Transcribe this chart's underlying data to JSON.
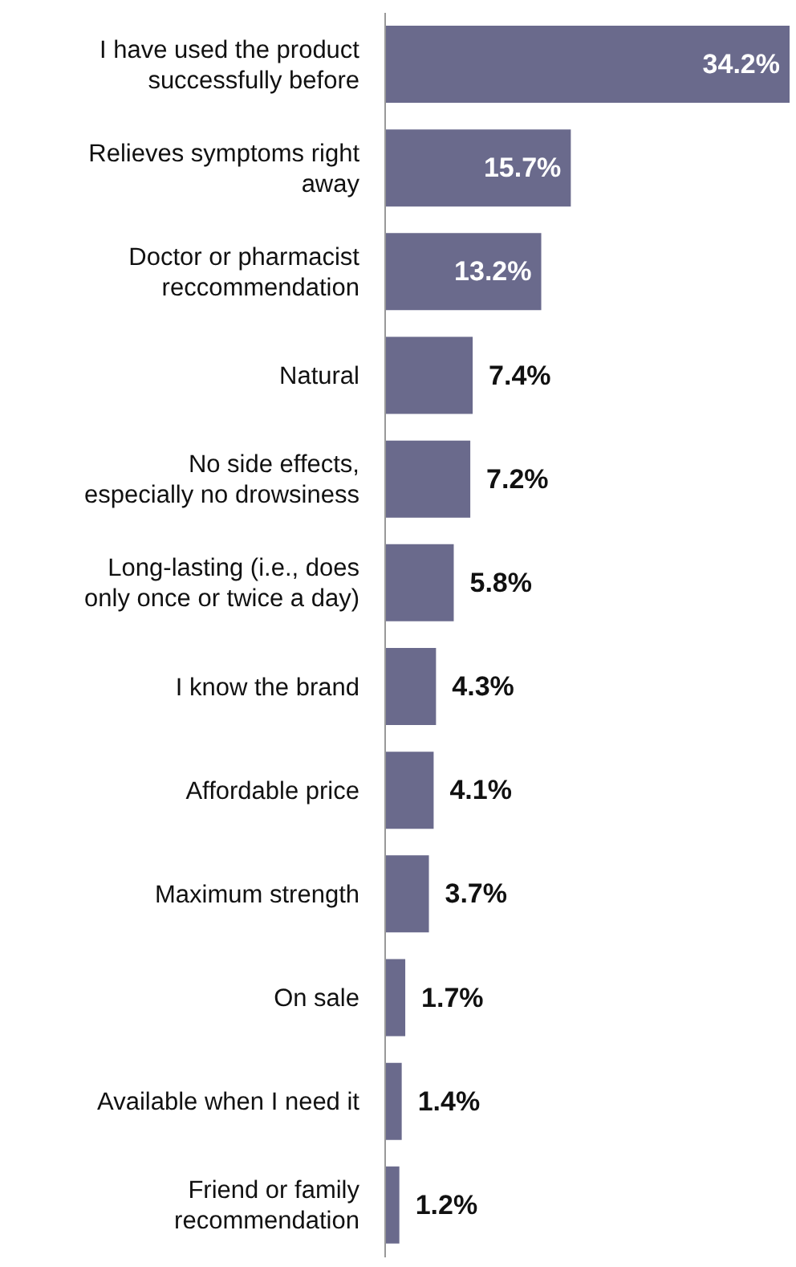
{
  "chart_data": {
    "type": "bar",
    "orientation": "horizontal",
    "categories": [
      "I have used the product successfully before",
      "Relieves symptoms right away",
      "Doctor or pharmacist reccommendation",
      "Natural",
      "No side effects, especially no drowsiness",
      "Long-lasting (i.e., does only once or twice a day)",
      "I know the brand",
      "Affordable price",
      "Maximum strength",
      "On sale",
      "Available when I need it",
      "Friend or family recommendation"
    ],
    "values": [
      34.2,
      15.7,
      13.2,
      7.4,
      7.2,
      5.8,
      4.3,
      4.1,
      3.7,
      1.7,
      1.4,
      1.2
    ],
    "value_labels": [
      "34.2%",
      "15.7%",
      "13.2%",
      "7.4%",
      "7.2%",
      "5.8%",
      "4.3%",
      "4.1%",
      "3.7%",
      "1.7%",
      "1.4%",
      "1.2%"
    ],
    "color": "#6a6a8c",
    "grid": false,
    "legend": false
  }
}
